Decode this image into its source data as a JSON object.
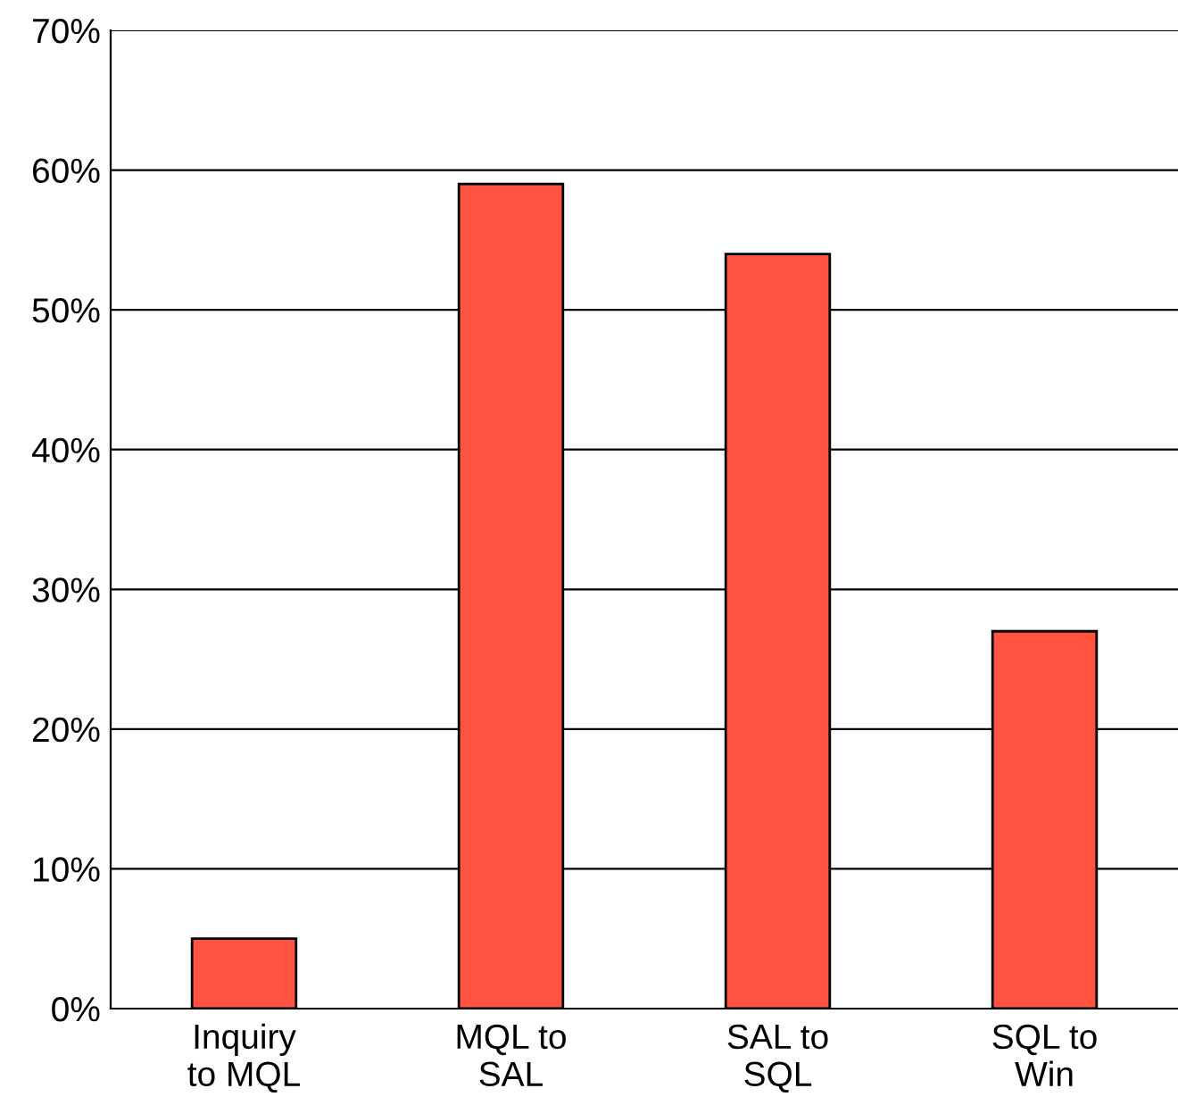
{
  "chart_data": {
    "type": "bar",
    "categories": [
      "Inquiry\nto MQL",
      "MQL to\nSAL",
      "SAL to\nSQL",
      "SQL to\nWin"
    ],
    "values": [
      5,
      59,
      54,
      27
    ],
    "color": "#ff5240",
    "ylim": [
      0,
      70
    ],
    "yticks": [
      {
        "value": 0,
        "label": "0%"
      },
      {
        "value": 10,
        "label": "10%"
      },
      {
        "value": 20,
        "label": "20%"
      },
      {
        "value": 30,
        "label": "30%"
      },
      {
        "value": 40,
        "label": "40%"
      },
      {
        "value": 50,
        "label": "50%"
      },
      {
        "value": 60,
        "label": "60%"
      },
      {
        "value": 70,
        "label": "70%"
      }
    ],
    "grid": "y"
  }
}
